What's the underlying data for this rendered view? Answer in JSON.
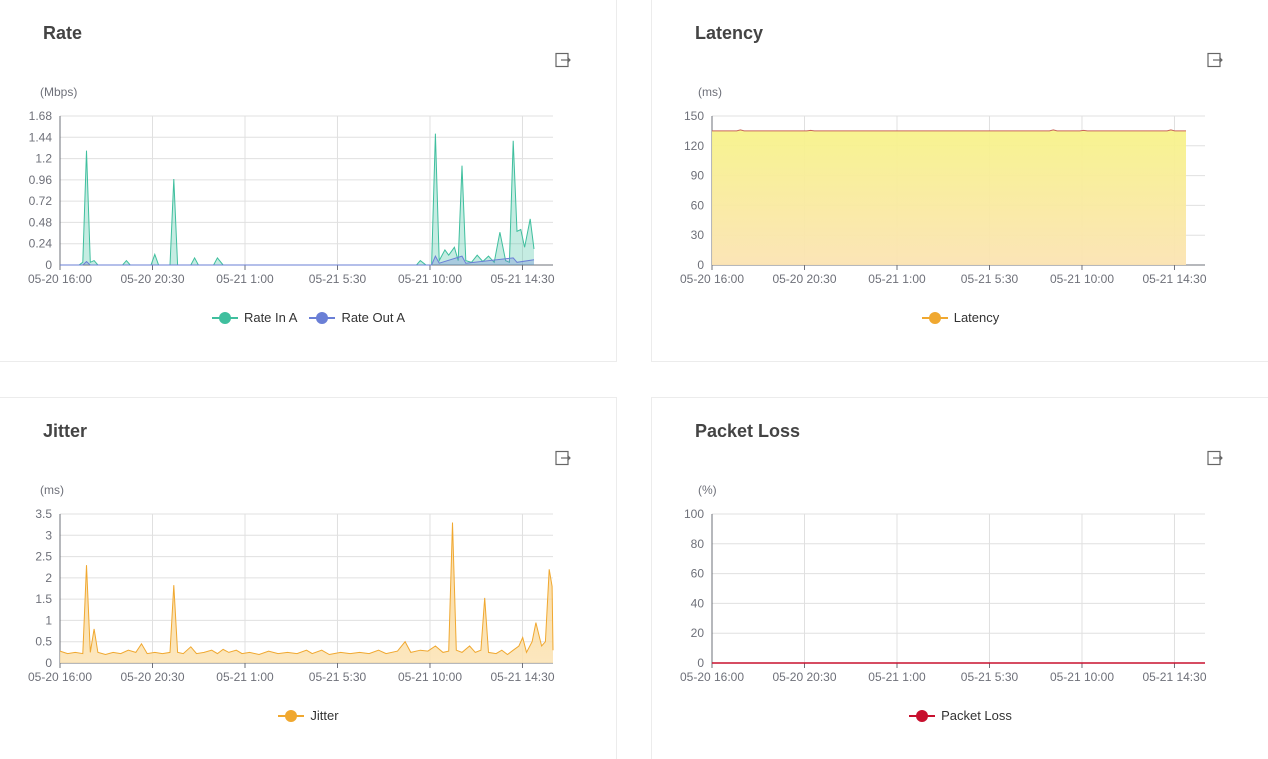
{
  "x_axis_labels": [
    "05-20 16:00",
    "05-20 20:30",
    "05-21 1:00",
    "05-21 5:30",
    "05-21 10:00",
    "05-21 14:30"
  ],
  "charts": [
    {
      "title": "Rate",
      "unit": "(Mbps)",
      "ylim": [
        0,
        1.68
      ],
      "y_ticks": [
        "0",
        "0.24",
        "0.48",
        "0.72",
        "0.96",
        "1.2",
        "1.44",
        "1.68"
      ],
      "legend": [
        {
          "name": "Rate In A",
          "color": "#3fbf9e"
        },
        {
          "name": "Rate Out A",
          "color": "#6a7fd6"
        }
      ]
    },
    {
      "title": "Latency",
      "unit": "(ms)",
      "ylim": [
        0,
        150
      ],
      "y_ticks": [
        "0",
        "30",
        "60",
        "90",
        "120",
        "150"
      ],
      "legend": [
        {
          "name": "Latency",
          "color": "#f0a830"
        }
      ]
    },
    {
      "title": "Jitter",
      "unit": "(ms)",
      "ylim": [
        0,
        3.5
      ],
      "y_ticks": [
        "0",
        "0.5",
        "1",
        "1.5",
        "2",
        "2.5",
        "3",
        "3.5"
      ],
      "legend": [
        {
          "name": "Jitter",
          "color": "#f0a830"
        }
      ]
    },
    {
      "title": "Packet Loss",
      "unit": "(%)",
      "ylim": [
        0,
        100
      ],
      "y_ticks": [
        "0",
        "20",
        "40",
        "60",
        "80",
        "100"
      ],
      "legend": [
        {
          "name": "Packet Loss",
          "color": "#c8102e"
        }
      ]
    }
  ],
  "chart_data": [
    {
      "type": "area",
      "title": "Rate",
      "ylabel": "(Mbps)",
      "ylim": [
        0,
        1.68
      ],
      "x_tick_labels": [
        "05-20 16:00",
        "05-20 20:30",
        "05-21 1:00",
        "05-21 5:30",
        "05-21 10:00",
        "05-21 14:30"
      ],
      "x_range_hours": [
        0,
        26
      ],
      "series": [
        {
          "name": "Rate In A",
          "color": "#3fbf9e",
          "points": [
            [
              0,
              0
            ],
            [
              1.0,
              0
            ],
            [
              1.2,
              0.03
            ],
            [
              1.4,
              1.29
            ],
            [
              1.6,
              0.03
            ],
            [
              1.8,
              0.05
            ],
            [
              2.0,
              0
            ],
            [
              3.3,
              0
            ],
            [
              3.5,
              0.05
            ],
            [
              3.7,
              0
            ],
            [
              4.8,
              0
            ],
            [
              5.0,
              0.12
            ],
            [
              5.2,
              0
            ],
            [
              5.8,
              0
            ],
            [
              6.0,
              0.97
            ],
            [
              6.2,
              0
            ],
            [
              6.9,
              0
            ],
            [
              7.1,
              0.08
            ],
            [
              7.3,
              0
            ],
            [
              8.1,
              0
            ],
            [
              8.3,
              0.08
            ],
            [
              8.6,
              0
            ],
            [
              18.8,
              0
            ],
            [
              19.0,
              0.05
            ],
            [
              19.3,
              0
            ],
            [
              19.6,
              0
            ],
            [
              19.8,
              1.48
            ],
            [
              20.0,
              0.05
            ],
            [
              20.3,
              0.17
            ],
            [
              20.5,
              0.11
            ],
            [
              20.8,
              0.2
            ],
            [
              21.0,
              0.05
            ],
            [
              21.2,
              1.12
            ],
            [
              21.4,
              0.05
            ],
            [
              21.7,
              0.03
            ],
            [
              22.0,
              0.11
            ],
            [
              22.3,
              0.04
            ],
            [
              22.6,
              0.1
            ],
            [
              22.9,
              0.03
            ],
            [
              23.2,
              0.37
            ],
            [
              23.5,
              0.05
            ],
            [
              23.7,
              0.03
            ],
            [
              23.9,
              1.4
            ],
            [
              24.1,
              0.38
            ],
            [
              24.3,
              0.4
            ],
            [
              24.5,
              0.2
            ],
            [
              24.8,
              0.52
            ],
            [
              25.0,
              0.18
            ]
          ]
        },
        {
          "name": "Rate Out A",
          "color": "#6a7fd6",
          "points": [
            [
              0,
              0
            ],
            [
              1.2,
              0
            ],
            [
              1.4,
              0.04
            ],
            [
              1.6,
              0
            ],
            [
              19.6,
              0
            ],
            [
              19.8,
              0.1
            ],
            [
              20.0,
              0.02
            ],
            [
              21.2,
              0.1
            ],
            [
              21.4,
              0.02
            ],
            [
              23.9,
              0.08
            ],
            [
              24.1,
              0.03
            ],
            [
              25.0,
              0.06
            ]
          ]
        }
      ]
    },
    {
      "type": "area",
      "title": "Latency",
      "ylabel": "(ms)",
      "ylim": [
        0,
        150
      ],
      "x_tick_labels": [
        "05-20 16:00",
        "05-20 20:30",
        "05-21 1:00",
        "05-21 5:30",
        "05-21 10:00",
        "05-21 14:30"
      ],
      "x_range_hours": [
        0,
        26
      ],
      "series": [
        {
          "name": "Latency",
          "color": "#f0a830",
          "points": [
            [
              0,
              135
            ],
            [
              1.3,
              135
            ],
            [
              1.5,
              136
            ],
            [
              1.7,
              135
            ],
            [
              5.0,
              135
            ],
            [
              5.2,
              135.5
            ],
            [
              5.4,
              135
            ],
            [
              17.8,
              135
            ],
            [
              18.0,
              136
            ],
            [
              18.2,
              135
            ],
            [
              19.4,
              135
            ],
            [
              19.6,
              135.5
            ],
            [
              19.8,
              135
            ],
            [
              24.0,
              135
            ],
            [
              24.2,
              136
            ],
            [
              24.4,
              135
            ],
            [
              25.0,
              135
            ]
          ]
        }
      ]
    },
    {
      "type": "area",
      "title": "Jitter",
      "ylabel": "(ms)",
      "ylim": [
        0,
        3.5
      ],
      "x_tick_labels": [
        "05-20 16:00",
        "05-20 20:30",
        "05-21 1:00",
        "05-21 5:30",
        "05-21 10:00",
        "05-21 14:30"
      ],
      "x_range_hours": [
        0,
        26
      ],
      "series": [
        {
          "name": "Jitter",
          "color": "#f0a830",
          "points": [
            [
              0,
              0.28
            ],
            [
              0.4,
              0.22
            ],
            [
              0.8,
              0.25
            ],
            [
              1.2,
              0.22
            ],
            [
              1.4,
              2.3
            ],
            [
              1.6,
              0.25
            ],
            [
              1.8,
              0.8
            ],
            [
              2.0,
              0.25
            ],
            [
              2.4,
              0.2
            ],
            [
              2.8,
              0.25
            ],
            [
              3.2,
              0.22
            ],
            [
              3.6,
              0.3
            ],
            [
              4.0,
              0.25
            ],
            [
              4.3,
              0.45
            ],
            [
              4.6,
              0.22
            ],
            [
              5.0,
              0.25
            ],
            [
              5.4,
              0.22
            ],
            [
              5.8,
              0.25
            ],
            [
              6.0,
              1.83
            ],
            [
              6.2,
              0.25
            ],
            [
              6.5,
              0.22
            ],
            [
              6.9,
              0.38
            ],
            [
              7.2,
              0.22
            ],
            [
              7.6,
              0.25
            ],
            [
              8.0,
              0.3
            ],
            [
              8.3,
              0.22
            ],
            [
              8.6,
              0.32
            ],
            [
              8.9,
              0.25
            ],
            [
              9.3,
              0.3
            ],
            [
              9.6,
              0.22
            ],
            [
              10.0,
              0.25
            ],
            [
              10.5,
              0.2
            ],
            [
              11.0,
              0.28
            ],
            [
              11.5,
              0.22
            ],
            [
              12.0,
              0.25
            ],
            [
              12.5,
              0.22
            ],
            [
              13.0,
              0.3
            ],
            [
              13.3,
              0.22
            ],
            [
              13.8,
              0.3
            ],
            [
              14.2,
              0.2
            ],
            [
              14.8,
              0.25
            ],
            [
              15.3,
              0.22
            ],
            [
              15.8,
              0.25
            ],
            [
              16.3,
              0.22
            ],
            [
              16.8,
              0.3
            ],
            [
              17.2,
              0.22
            ],
            [
              17.8,
              0.28
            ],
            [
              18.2,
              0.5
            ],
            [
              18.5,
              0.25
            ],
            [
              19.0,
              0.3
            ],
            [
              19.4,
              0.28
            ],
            [
              19.8,
              0.4
            ],
            [
              20.2,
              0.25
            ],
            [
              20.5,
              0.28
            ],
            [
              20.7,
              3.3
            ],
            [
              20.9,
              0.3
            ],
            [
              21.2,
              0.25
            ],
            [
              21.6,
              0.4
            ],
            [
              21.9,
              0.25
            ],
            [
              22.2,
              0.3
            ],
            [
              22.4,
              1.53
            ],
            [
              22.6,
              0.25
            ],
            [
              23.0,
              0.22
            ],
            [
              23.3,
              0.3
            ],
            [
              23.6,
              0.2
            ],
            [
              23.9,
              0.3
            ],
            [
              24.2,
              0.4
            ],
            [
              24.4,
              0.6
            ],
            [
              24.6,
              0.25
            ],
            [
              24.9,
              0.5
            ],
            [
              25.1,
              0.95
            ],
            [
              25.4,
              0.4
            ],
            [
              25.6,
              0.5
            ],
            [
              25.8,
              2.2
            ],
            [
              25.95,
              1.8
            ],
            [
              26.0,
              0.3
            ]
          ]
        }
      ]
    },
    {
      "type": "line",
      "title": "Packet Loss",
      "ylabel": "(%)",
      "ylim": [
        0,
        100
      ],
      "x_tick_labels": [
        "05-20 16:00",
        "05-20 20:30",
        "05-21 1:00",
        "05-21 5:30",
        "05-21 10:00",
        "05-21 14:30"
      ],
      "x_range_hours": [
        0,
        26
      ],
      "series": [
        {
          "name": "Packet Loss",
          "color": "#c8102e",
          "points": [
            [
              0,
              0
            ],
            [
              26,
              0
            ]
          ]
        }
      ]
    }
  ]
}
